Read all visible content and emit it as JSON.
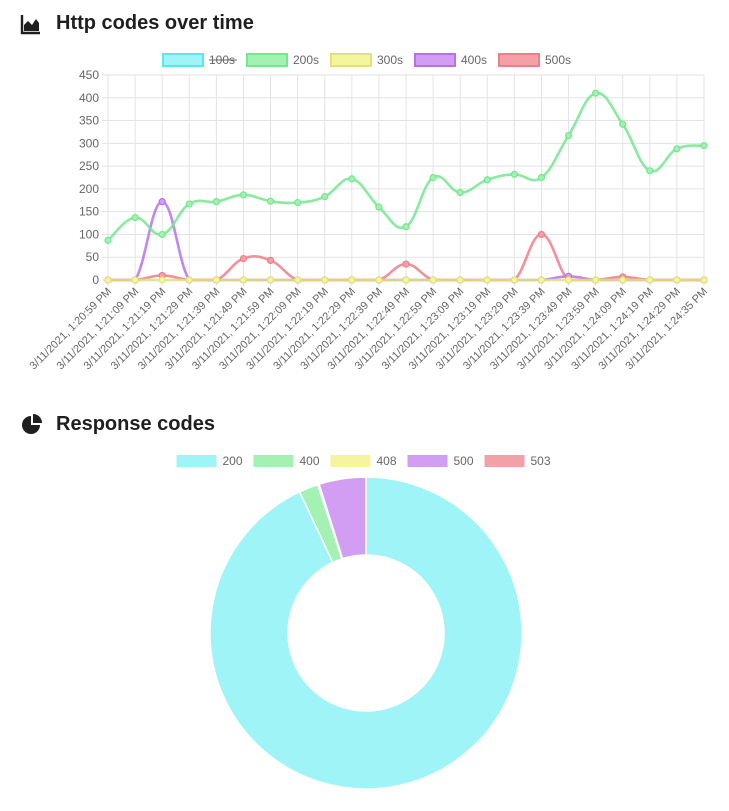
{
  "sections": {
    "line_title": "Http codes over time",
    "line_icon": "area-chart-icon",
    "pie_title": "Response codes",
    "pie_icon": "pie-chart-icon"
  },
  "chart_data": [
    {
      "type": "line",
      "title": "Http codes over time",
      "ylim": [
        0,
        450
      ],
      "y_ticks": [
        0,
        50,
        100,
        150,
        200,
        250,
        300,
        350,
        400,
        450
      ],
      "grid": true,
      "legend_position": "top",
      "x": [
        "3/11/2021, 1:20:59 PM",
        "3/11/2021, 1:21:09 PM",
        "3/11/2021, 1:21:19 PM",
        "3/11/2021, 1:21:29 PM",
        "3/11/2021, 1:21:39 PM",
        "3/11/2021, 1:21:49 PM",
        "3/11/2021, 1:21:59 PM",
        "3/11/2021, 1:22:09 PM",
        "3/11/2021, 1:22:19 PM",
        "3/11/2021, 1:22:29 PM",
        "3/11/2021, 1:22:39 PM",
        "3/11/2021, 1:22:49 PM",
        "3/11/2021, 1:22:59 PM",
        "3/11/2021, 1:23:09 PM",
        "3/11/2021, 1:23:19 PM",
        "3/11/2021, 1:23:29 PM",
        "3/11/2021, 1:23:39 PM",
        "3/11/2021, 1:23:49 PM",
        "3/11/2021, 1:23:59 PM",
        "3/11/2021, 1:24:09 PM",
        "3/11/2021, 1:24:19 PM",
        "3/11/2021, 1:24:29 PM",
        "3/11/2021, 1:24:35 PM"
      ],
      "x_tick_labels": [
        "3/11/2021, 1:20:59 PM",
        "3/11/2021, 1:21:09 PM",
        "3/11/2021, 1:21:19 PM",
        "3/11/2021, 1:21:29 PM",
        "3/11/2021, 1:21:39 PM",
        "3/11/2021, 1:21:49 PM",
        "3/11/2021, 1:21:59 PM",
        "3/11/2021, 1:22:09 PM",
        "3/11/2021, 1:22:19 PM",
        "3/11/2021, 1:22:29 PM",
        "3/11/2021, 1:22:39 PM",
        "3/11/2021, 1:22:49 PM",
        "3/11/2021, 1:22:59 PM",
        "3/11/2021, 1:23:09 PM",
        "3/11/2021, 1:23:19 PM",
        "3/11/2021, 1:23:29 PM",
        "3/11/2021, 1:23:39 PM",
        "3/11/2021, 1:23:49 PM",
        "3/11/2021, 1:23:59 PM",
        "3/11/2021, 1:24:09 PM",
        "3/11/2021, 1:24:19 PM",
        "3/11/2021, 1:24:29 PM",
        "3/11/2021, 1:24:35 PM"
      ],
      "series": [
        {
          "name": "100s",
          "hidden": true,
          "color": "#9ef4f6",
          "border": "#5ee6ee",
          "values": [
            0,
            0,
            0,
            0,
            0,
            0,
            0,
            0,
            0,
            0,
            0,
            0,
            0,
            0,
            0,
            0,
            0,
            0,
            0,
            0,
            0,
            0,
            0
          ]
        },
        {
          "name": "200s",
          "color": "#a3f1b3",
          "border": "#73e88e",
          "values": [
            87,
            137,
            100,
            167,
            172,
            187,
            173,
            170,
            183,
            222,
            160,
            117,
            225,
            192,
            220,
            232,
            225,
            317,
            410,
            342,
            240,
            288,
            295
          ]
        },
        {
          "name": "300s",
          "color": "#f5f5a0",
          "border": "#e2e27a",
          "values": [
            0,
            0,
            0,
            0,
            0,
            0,
            0,
            0,
            0,
            0,
            0,
            0,
            0,
            0,
            0,
            0,
            0,
            0,
            0,
            0,
            0,
            0,
            0
          ]
        },
        {
          "name": "400s",
          "color": "#d19ef3",
          "border": "#b672ec",
          "values": [
            0,
            0,
            172,
            0,
            0,
            0,
            0,
            0,
            0,
            0,
            0,
            0,
            0,
            0,
            0,
            0,
            0,
            8,
            0,
            0,
            0,
            0,
            0
          ]
        },
        {
          "name": "500s",
          "color": "#f4a0a7",
          "border": "#ef7e89",
          "values": [
            0,
            0,
            10,
            0,
            0,
            47,
            43,
            0,
            0,
            0,
            0,
            35,
            0,
            0,
            0,
            0,
            100,
            0,
            0,
            7,
            0,
            0,
            0
          ]
        }
      ]
    },
    {
      "type": "pie",
      "title": "Response codes",
      "legend_position": "top",
      "categories": [
        "200",
        "400",
        "408",
        "500",
        "503"
      ],
      "values": [
        93,
        2,
        0.15,
        4.85,
        0
      ],
      "colors": [
        "#9ef4f6",
        "#a3f1b3",
        "#f5f5a0",
        "#d19ef3",
        "#f4a0a7"
      ]
    }
  ]
}
